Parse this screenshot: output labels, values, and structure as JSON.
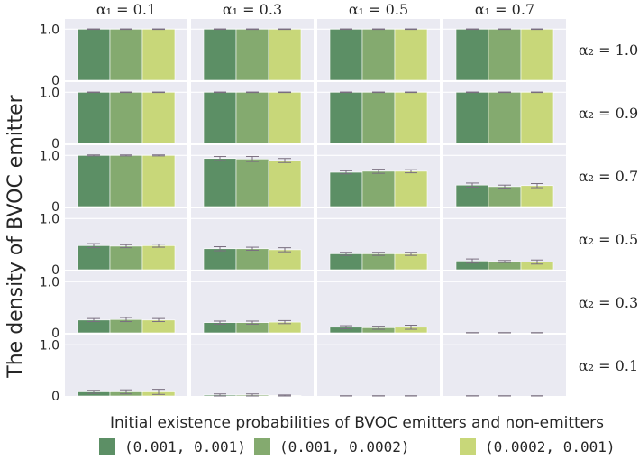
{
  "chart_data": {
    "type": "bar",
    "ylabel": "The density of BVOC emitter",
    "ylim": [
      0,
      1.2
    ],
    "yticks": [
      0,
      1.0
    ],
    "ytick_labels": [
      "0",
      "1.0"
    ],
    "legend": {
      "title": "Initial existence probabilities of BVOC emitters and non-emitters",
      "placement": "bottom"
    },
    "colors": [
      "#5c8f65",
      "#84aa6f",
      "#c8d779"
    ],
    "series": [
      {
        "name": "(0.001, 0.001)"
      },
      {
        "name": "(0.001, 0.0002)"
      },
      {
        "name": "(0.0002, 0.001)"
      }
    ],
    "columns": [
      "α₁ = 0.1",
      "α₁ = 0.3",
      "α₁ = 0.5",
      "α₁ = 0.7"
    ],
    "rows": [
      "α₂ = 1.0",
      "α₂ = 0.9",
      "α₂ = 0.7",
      "α₂ = 0.5",
      "α₂ = 0.3",
      "α₂ = 0.1"
    ],
    "values": [
      [
        [
          1.0,
          1.0,
          1.0
        ],
        [
          1.0,
          1.0,
          1.0
        ],
        [
          1.0,
          1.0,
          1.0
        ],
        [
          1.0,
          1.0,
          1.0
        ]
      ],
      [
        [
          1.0,
          1.0,
          1.0
        ],
        [
          1.0,
          1.0,
          1.0
        ],
        [
          1.0,
          1.0,
          1.0
        ],
        [
          1.0,
          1.0,
          1.0
        ]
      ],
      [
        [
          1.0,
          1.0,
          1.0
        ],
        [
          0.94,
          0.93,
          0.9
        ],
        [
          0.67,
          0.69,
          0.69
        ],
        [
          0.42,
          0.39,
          0.41
        ]
      ],
      [
        [
          0.47,
          0.46,
          0.47
        ],
        [
          0.41,
          0.41,
          0.39
        ],
        [
          0.31,
          0.31,
          0.31
        ],
        [
          0.17,
          0.16,
          0.15
        ]
      ],
      [
        [
          0.25,
          0.26,
          0.25
        ],
        [
          0.2,
          0.2,
          0.21
        ],
        [
          0.11,
          0.1,
          0.11
        ],
        [
          0.0,
          0.0,
          0.0
        ]
      ],
      [
        [
          0.08,
          0.08,
          0.08
        ],
        [
          0.02,
          0.02,
          0.01
        ],
        [
          0.0,
          0.0,
          0.0
        ],
        [
          0.0,
          0.0,
          0.0
        ]
      ]
    ],
    "errors": [
      [
        [
          0.005,
          0.005,
          0.005
        ],
        [
          0.005,
          0.005,
          0.005
        ],
        [
          0.005,
          0.005,
          0.005
        ],
        [
          0.005,
          0.005,
          0.005
        ]
      ],
      [
        [
          0.005,
          0.005,
          0.005
        ],
        [
          0.005,
          0.005,
          0.005
        ],
        [
          0.005,
          0.005,
          0.005
        ],
        [
          0.005,
          0.005,
          0.005
        ]
      ],
      [
        [
          0.01,
          0.01,
          0.01
        ],
        [
          0.04,
          0.05,
          0.04
        ],
        [
          0.03,
          0.04,
          0.03
        ],
        [
          0.04,
          0.03,
          0.04
        ]
      ],
      [
        [
          0.04,
          0.03,
          0.03
        ],
        [
          0.04,
          0.03,
          0.04
        ],
        [
          0.03,
          0.03,
          0.03
        ],
        [
          0.04,
          0.02,
          0.04
        ]
      ],
      [
        [
          0.03,
          0.04,
          0.03
        ],
        [
          0.03,
          0.03,
          0.03
        ],
        [
          0.03,
          0.03,
          0.04
        ],
        [
          0.005,
          0.005,
          0.005
        ]
      ],
      [
        [
          0.03,
          0.04,
          0.05
        ],
        [
          0.02,
          0.02,
          0.01
        ],
        [
          0.005,
          0.005,
          0.005
        ],
        [
          0.005,
          0.005,
          0.005
        ]
      ]
    ]
  }
}
